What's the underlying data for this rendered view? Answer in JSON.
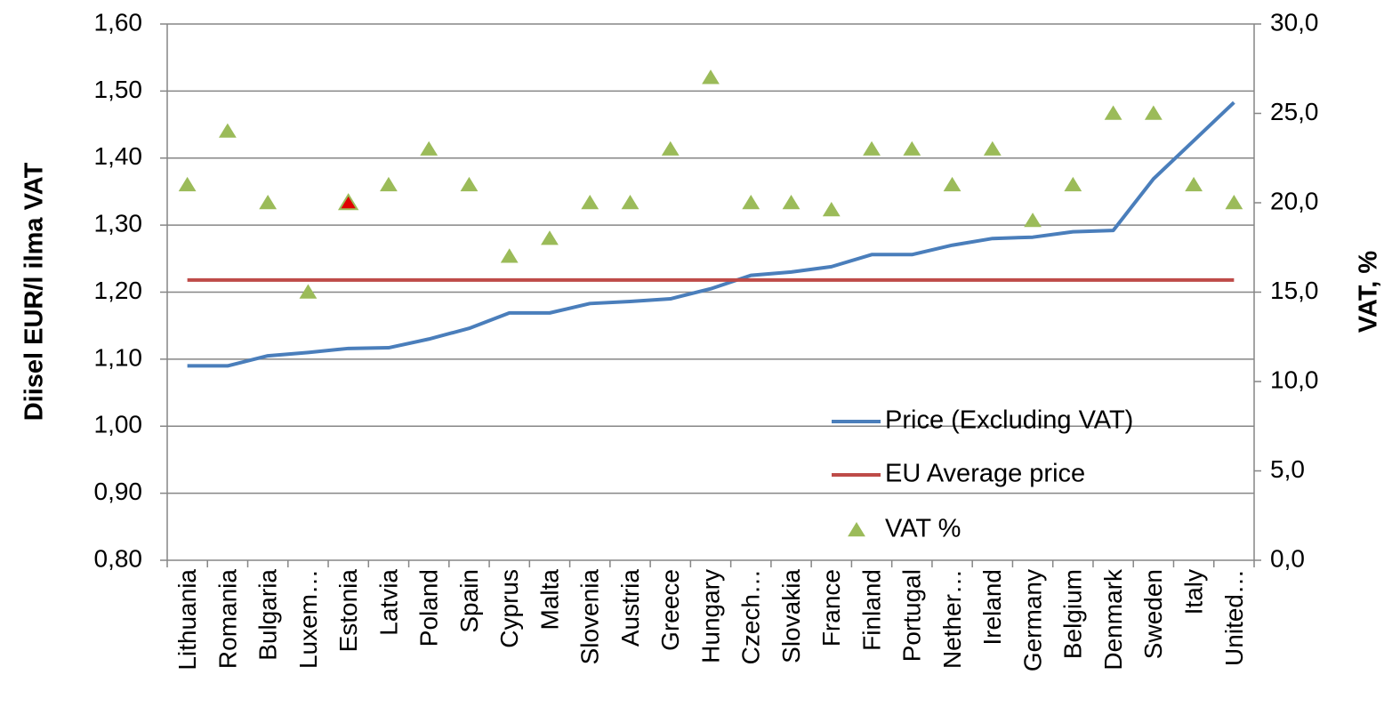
{
  "chart_data": {
    "type": "line",
    "ylabel": "Diisel EUR/l ilma VAT",
    "y2label": "VAT, %",
    "categories": [
      "Lithuania",
      "Romania",
      "Bulgaria",
      "Luxem…",
      "Estonia",
      "Latvia",
      "Poland",
      "Spain",
      "Cyprus",
      "Malta",
      "Slovenia",
      "Austria",
      "Greece",
      "Hungary",
      "Czech…",
      "Slovakia",
      "France",
      "Finland",
      "Portugal",
      "Nether…",
      "Ireland",
      "Germany",
      "Belgium",
      "Denmark",
      "Sweden",
      "Italy",
      "United…"
    ],
    "series": [
      {
        "name": "Price (Excluding VAT)",
        "type": "line",
        "color": "#4a7ebb",
        "values": [
          1.09,
          1.09,
          1.105,
          1.11,
          1.116,
          1.117,
          1.13,
          1.146,
          1.169,
          1.169,
          1.183,
          1.186,
          1.19,
          1.205,
          1.225,
          1.23,
          1.238,
          1.256,
          1.256,
          1.27,
          1.28,
          1.282,
          1.29,
          1.292,
          1.369,
          1.426,
          1.483
        ]
      },
      {
        "name": "EU Average price",
        "type": "line",
        "color": "#be4b48",
        "values": [
          1.218,
          1.218,
          1.218,
          1.218,
          1.218,
          1.218,
          1.218,
          1.218,
          1.218,
          1.218,
          1.218,
          1.218,
          1.218,
          1.218,
          1.218,
          1.218,
          1.218,
          1.218,
          1.218,
          1.218,
          1.218,
          1.218,
          1.218,
          1.218,
          1.218,
          1.218,
          1.218
        ]
      },
      {
        "name": "VAT %",
        "type": "marker",
        "axis": "y2",
        "color": "#9bbb59",
        "point_colors": [
          "#9bbb59",
          "#9bbb59",
          "#9bbb59",
          "#9bbb59",
          "#e00000",
          "#9bbb59",
          "#9bbb59",
          "#9bbb59",
          "#9bbb59",
          "#9bbb59",
          "#9bbb59",
          "#9bbb59",
          "#9bbb59",
          "#9bbb59",
          "#9bbb59",
          "#9bbb59",
          "#9bbb59",
          "#9bbb59",
          "#9bbb59",
          "#9bbb59",
          "#9bbb59",
          "#9bbb59",
          "#9bbb59",
          "#9bbb59",
          "#9bbb59",
          "#9bbb59",
          "#9bbb59"
        ],
        "values": [
          21,
          24,
          20,
          15,
          20,
          21,
          23,
          21,
          17,
          18,
          20,
          20,
          23,
          27,
          20,
          20,
          19.6,
          23,
          23,
          21,
          23,
          19,
          21,
          25,
          25,
          21,
          20
        ]
      }
    ],
    "ylim": [
      0.8,
      1.6
    ],
    "yticks": [
      {
        "value": 0.8,
        "label": "0,80"
      },
      {
        "value": 0.9,
        "label": "0,90"
      },
      {
        "value": 1.0,
        "label": "1,00"
      },
      {
        "value": 1.1,
        "label": "1,10"
      },
      {
        "value": 1.2,
        "label": "1,20"
      },
      {
        "value": 1.3,
        "label": "1,30"
      },
      {
        "value": 1.4,
        "label": "1,40"
      },
      {
        "value": 1.5,
        "label": "1,50"
      },
      {
        "value": 1.6,
        "label": "1,60"
      }
    ],
    "y2lim": [
      0,
      30
    ],
    "y2ticks": [
      {
        "value": 0,
        "label": "0,0"
      },
      {
        "value": 5,
        "label": "5,0"
      },
      {
        "value": 10,
        "label": "10,0"
      },
      {
        "value": 15,
        "label": "15,0"
      },
      {
        "value": 20,
        "label": "20,0"
      },
      {
        "value": 25,
        "label": "25,0"
      },
      {
        "value": 30,
        "label": "30,0"
      }
    ],
    "grid": true,
    "legend": "bottom-right"
  }
}
